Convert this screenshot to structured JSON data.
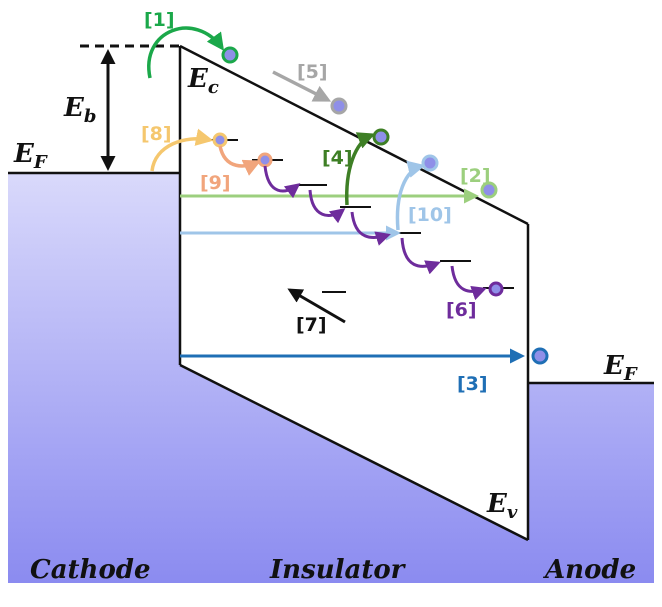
{
  "regions": {
    "cathode": "Cathode",
    "insulator": "Insulator",
    "anode": "Anode"
  },
  "energy_labels": {
    "cathode_fermi": {
      "main": "E",
      "sub": "F"
    },
    "anode_fermi": {
      "main": "E",
      "sub": "F"
    },
    "barrier": {
      "main": "E",
      "sub": "b"
    },
    "conduction_band": {
      "main": "E",
      "sub": "c"
    },
    "valence_band": {
      "main": "E",
      "sub": "v"
    }
  },
  "processes": [
    {
      "id": "p1",
      "label": "[1]",
      "color": "#1ba84a"
    },
    {
      "id": "p2",
      "label": "[2]",
      "color": "#9ccf7e"
    },
    {
      "id": "p3",
      "label": "[3]",
      "color": "#1f6fb5"
    },
    {
      "id": "p4",
      "label": "[4]",
      "color": "#3e7f25"
    },
    {
      "id": "p5",
      "label": "[5]",
      "color": "#a6a6a6"
    },
    {
      "id": "p6",
      "label": "[6]",
      "color": "#6e2c9c"
    },
    {
      "id": "p7",
      "label": "[7]",
      "color": "#111111"
    },
    {
      "id": "p8",
      "label": "[8]",
      "color": "#f5c76e"
    },
    {
      "id": "p9",
      "label": "[9]",
      "color": "#f1a57c"
    },
    {
      "id": "p10",
      "label": "[10]",
      "color": "#9fc5e8"
    }
  ],
  "colors": {
    "electrode_top": "#d7d7fb",
    "electrode_bottom": "#8d8df0",
    "electron_fill": "#8f8fe8",
    "trap_hop": "#6e2c9c",
    "outline": "#111111"
  }
}
